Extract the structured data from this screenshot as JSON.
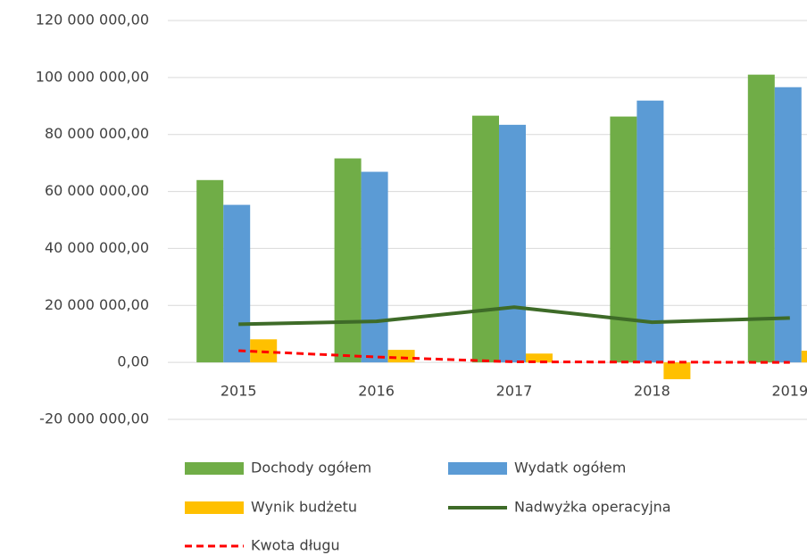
{
  "chart_data": {
    "type": "bar",
    "categories": [
      "2015",
      "2016",
      "2017",
      "2018",
      "2019"
    ],
    "series": [
      {
        "name": "Dochody ogółem",
        "type": "bar",
        "color": "#70ad47",
        "values": [
          64000000,
          71600000,
          86600000,
          86300000,
          101000000
        ]
      },
      {
        "name": "Wydatk ogółem",
        "type": "bar",
        "color": "#5b9bd5",
        "values": [
          55300000,
          66900000,
          83400000,
          91900000,
          96600000
        ]
      },
      {
        "name": "Wynik budżetu",
        "type": "bar",
        "color": "#ffc000",
        "values": [
          8100000,
          4400000,
          3100000,
          -5900000,
          4100000
        ]
      },
      {
        "name": "Nadwyżka operacyjna",
        "type": "line",
        "line_style": "solid",
        "color": "#3e6b28",
        "values": [
          13400000,
          14400000,
          19400000,
          14100000,
          15600000
        ]
      },
      {
        "name": "Kwota długu",
        "type": "line",
        "line_style": "dashed",
        "color": "#ff0000",
        "values": [
          4100000,
          1900000,
          200000,
          100000,
          0
        ]
      }
    ],
    "ylim": [
      -20000000,
      120000000
    ],
    "yticks": [
      {
        "value": -20000000,
        "label": "-20 000 000,00"
      },
      {
        "value": 0,
        "label": "0,00"
      },
      {
        "value": 20000000,
        "label": "20 000 000,00"
      },
      {
        "value": 40000000,
        "label": "40 000 000,00"
      },
      {
        "value": 60000000,
        "label": "60 000 000,00"
      },
      {
        "value": 80000000,
        "label": "80 000 000,00"
      },
      {
        "value": 100000000,
        "label": "100 000 000,00"
      },
      {
        "value": 120000000,
        "label": "120 000 000,00"
      }
    ],
    "grid": true,
    "legend": "bottom"
  }
}
